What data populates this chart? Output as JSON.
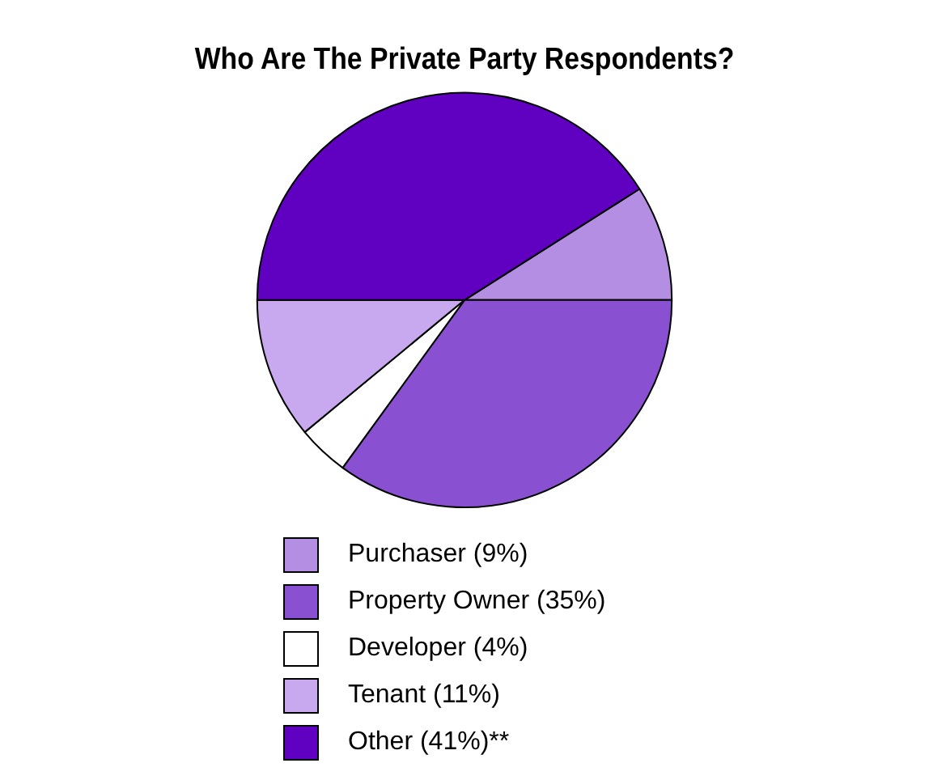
{
  "chart_data": {
    "type": "pie",
    "title": "Who Are The Private Party Respondents?",
    "categories": [
      "Purchaser (9%)",
      "Property Owner (35%)",
      "Developer (4%)",
      "Tenant (11%)",
      "Other (41%)**"
    ],
    "values": [
      9,
      35,
      4,
      11,
      41
    ],
    "colors": [
      "#b48ee2",
      "#8a50d2",
      "#ffffff",
      "#c8a8ee",
      "#6000c0"
    ],
    "legend": "bottom"
  }
}
